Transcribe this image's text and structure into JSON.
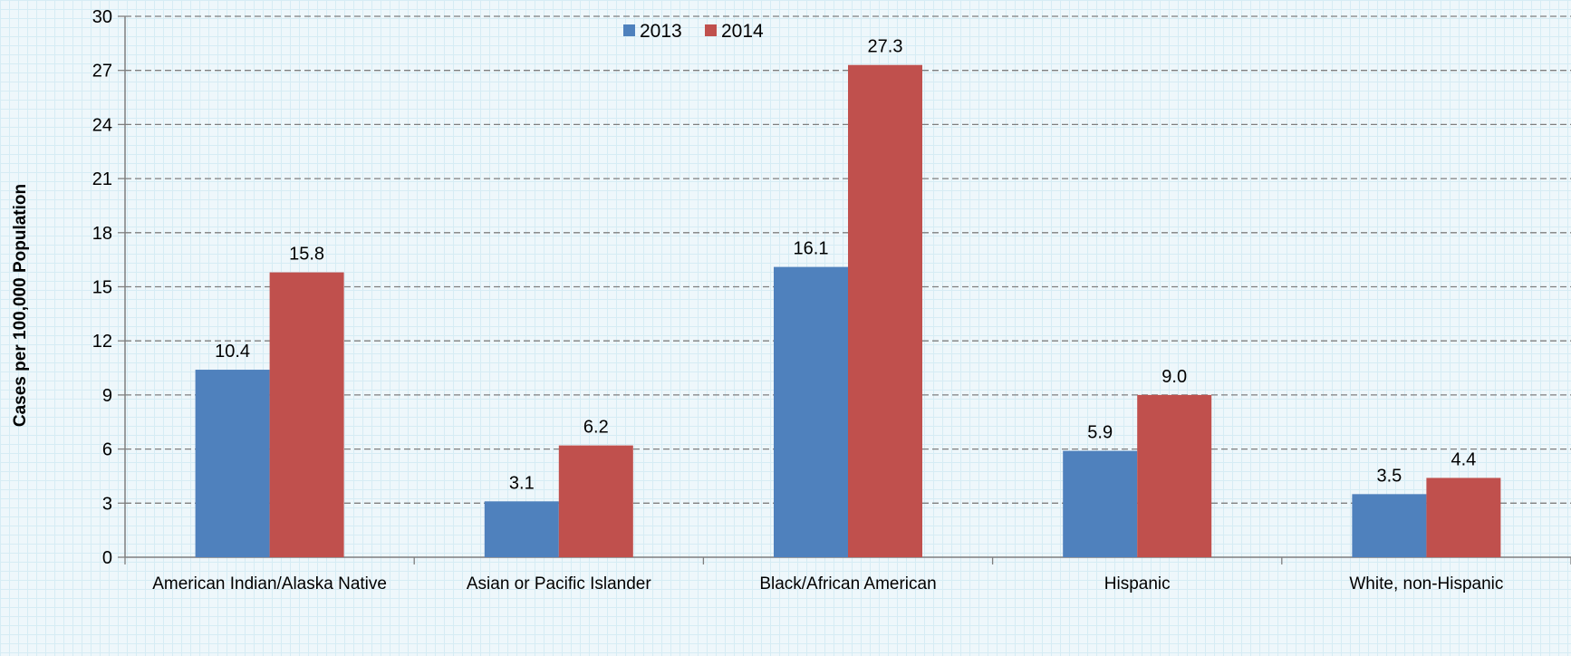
{
  "chart_data": {
    "type": "bar",
    "title": "",
    "xlabel": "",
    "ylabel": "Cases per 100,000 Population",
    "ylim": [
      0,
      30
    ],
    "yticks": [
      0,
      3,
      6,
      9,
      12,
      15,
      18,
      21,
      24,
      27,
      30
    ],
    "grid": "horizontal dashed",
    "legend_position": "top-center",
    "categories": [
      "American Indian/Alaska Native",
      "Asian or Pacific Islander",
      "Black/African American",
      "Hispanic",
      "White, non-Hispanic"
    ],
    "series": [
      {
        "name": "2013",
        "color": "#4f81bd",
        "values": [
          10.4,
          3.1,
          16.1,
          5.9,
          3.5
        ],
        "labels": [
          "10.4",
          "3.1",
          "16.1",
          "5.9",
          "3.5"
        ]
      },
      {
        "name": "2014",
        "color": "#c0504d",
        "values": [
          15.8,
          6.2,
          27.3,
          9.0,
          4.4
        ],
        "labels": [
          "15.8",
          "6.2",
          "27.3",
          "9.0",
          "4.4"
        ]
      }
    ]
  }
}
